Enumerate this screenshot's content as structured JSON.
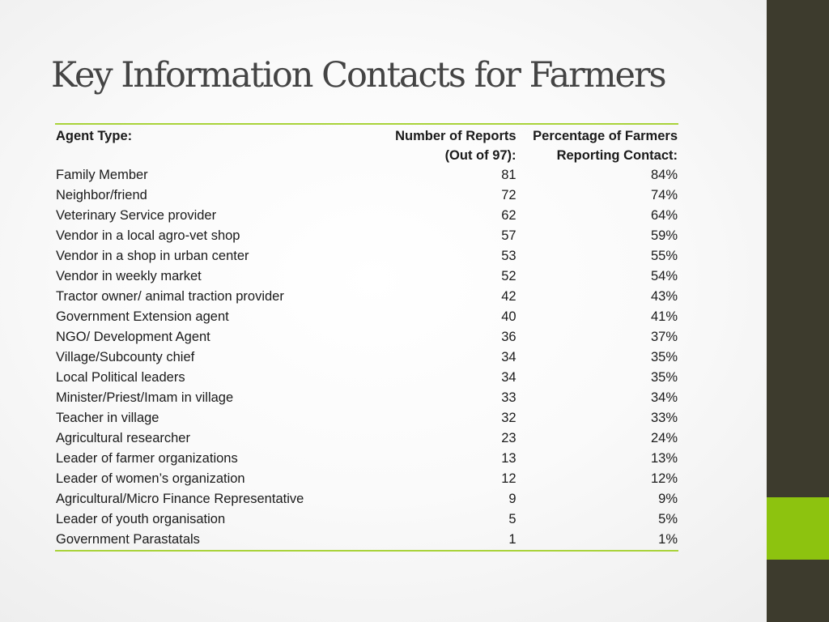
{
  "title": "Key Information Contacts for Farmers",
  "colors": {
    "sidebar": "#3d3b2d",
    "accent": "#8dc30f",
    "rule": "#a9d33a"
  },
  "table": {
    "headers": {
      "agent": "Agent Type:",
      "reports_line1": "Number of Reports",
      "reports_line2": "(Out of 97):",
      "percent_line1": "Percentage of Farmers",
      "percent_line2": "Reporting Contact:"
    },
    "rows": [
      {
        "agent": "Family Member",
        "reports": "81",
        "percent": "84%"
      },
      {
        "agent": "Neighbor/friend",
        "reports": "72",
        "percent": "74%"
      },
      {
        "agent": "Veterinary Service provider",
        "reports": "62",
        "percent": "64%"
      },
      {
        "agent": "Vendor in a local  agro-vet shop",
        "reports": "57",
        "percent": "59%"
      },
      {
        "agent": "Vendor in a shop in urban center",
        "reports": "53",
        "percent": "55%"
      },
      {
        "agent": "Vendor in weekly  market",
        "reports": "52",
        "percent": "54%"
      },
      {
        "agent": "Tractor owner/ animal traction provider",
        "reports": "42",
        "percent": "43%"
      },
      {
        "agent": "Government Extension agent",
        "reports": "40",
        "percent": "41%"
      },
      {
        "agent": "NGO/ Development Agent",
        "reports": "36",
        "percent": "37%"
      },
      {
        "agent": "Village/Subcounty chief",
        "reports": "34",
        "percent": "35%"
      },
      {
        "agent": "Local Political leaders",
        "reports": "34",
        "percent": "35%"
      },
      {
        "agent": "Minister/Priest/Imam in village",
        "reports": "33",
        "percent": "34%"
      },
      {
        "agent": "Teacher in village",
        "reports": "32",
        "percent": "33%"
      },
      {
        "agent": "Agricultural researcher",
        "reports": "23",
        "percent": "24%"
      },
      {
        "agent": "Leader of farmer organizations",
        "reports": "13",
        "percent": "13%"
      },
      {
        "agent": "Leader of women’s organization",
        "reports": "12",
        "percent": "12%"
      },
      {
        "agent": "Agricultural/Micro Finance Representative",
        "reports": "9",
        "percent": "9%"
      },
      {
        "agent": "Leader of youth organisation",
        "reports": "5",
        "percent": "5%"
      },
      {
        "agent": "Government Parastatals",
        "reports": "1",
        "percent": "1%"
      }
    ]
  }
}
